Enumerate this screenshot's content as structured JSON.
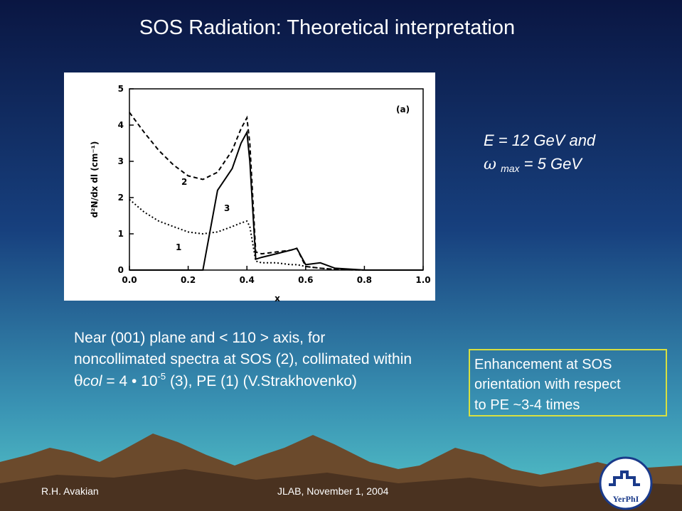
{
  "slide": {
    "title": "SOS Radiation: Theoretical interpretation",
    "energy": [
      "E = 12 GeV and",
      "ω",
      "max",
      "= 5 GeV"
    ],
    "caption": [
      "Near (001) plane and < 110 > axis, for",
      "noncollimated spectra at SOS (2), collimated within",
      "θ",
      "col",
      "= 4 • 10",
      "-5",
      "(3), PE (1) (V.Strakhovenko)"
    ],
    "box": [
      "Enhancement at SOS",
      "orientation with respect",
      "to PE ~3-4 times"
    ],
    "author": "R.H. Avakian",
    "footer": "JLAB, November 1, 2004",
    "logo": "YerPhI"
  },
  "chart_data": {
    "type": "line",
    "annotation": "(a)",
    "x_label": "x",
    "y_label": "d²N/dx dl (cm⁻¹)",
    "x": [
      0,
      0.05,
      0.1,
      0.15,
      0.2,
      0.25,
      0.3,
      0.35,
      0.38,
      0.4,
      0.41,
      0.43,
      0.45,
      0.5,
      0.55,
      0.57,
      0.6,
      0.65,
      0.7,
      0.8,
      1.0
    ],
    "series": [
      {
        "name": "1",
        "color": "#000000",
        "style": "dotted",
        "values": [
          1.95,
          1.6,
          1.35,
          1.2,
          1.05,
          1.0,
          1.05,
          1.2,
          1.3,
          1.35,
          1.2,
          0.25,
          0.2,
          0.2,
          0.15,
          0.15,
          0.1,
          0.05,
          0.02,
          0,
          0
        ]
      },
      {
        "name": "2",
        "color": "#000000",
        "style": "dashed",
        "values": [
          4.35,
          3.8,
          3.3,
          2.9,
          2.6,
          2.5,
          2.7,
          3.3,
          3.9,
          4.2,
          3.5,
          0.5,
          0.45,
          0.5,
          0.55,
          0.6,
          0.1,
          0.05,
          0.02,
          0,
          0
        ]
      },
      {
        "name": "3",
        "color": "#000000",
        "style": "solid",
        "values": [
          0,
          0,
          0,
          0,
          0,
          0,
          2.2,
          2.8,
          3.5,
          3.8,
          3.0,
          0.3,
          0.35,
          0.45,
          0.55,
          0.6,
          0.15,
          0.2,
          0.05,
          0,
          0
        ]
      }
    ],
    "xlim": [
      0,
      1.0
    ],
    "xticks": [
      {
        "value": 0,
        "label": "0.0"
      },
      {
        "value": 0.2,
        "label": "0.2"
      },
      {
        "value": 0.4,
        "label": "0.4"
      },
      {
        "value": 0.6,
        "label": "0.6"
      },
      {
        "value": 0.8,
        "label": "0.8"
      },
      {
        "value": 1.0,
        "label": "1.0"
      }
    ],
    "ylim": [
      0,
      5
    ],
    "yticks": [
      0,
      1,
      2,
      3,
      4,
      5
    ]
  }
}
